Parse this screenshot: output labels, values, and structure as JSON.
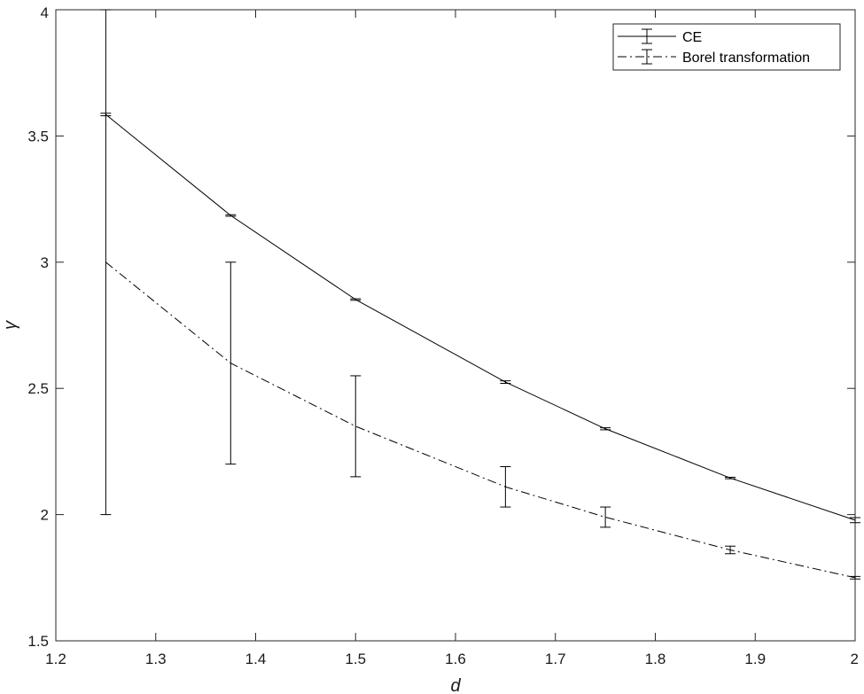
{
  "chart_data": {
    "type": "line",
    "title": "",
    "xlabel": "d",
    "ylabel": "γ",
    "xlim": [
      1.2,
      2.0
    ],
    "ylim": [
      1.5,
      4.0
    ],
    "xticks": [
      "1.2",
      "1.3",
      "1.4",
      "1.5",
      "1.6",
      "1.7",
      "1.8",
      "1.9",
      "2"
    ],
    "yticks": [
      "1.5",
      "2",
      "2.5",
      "3",
      "3.5",
      "4"
    ],
    "grid": false,
    "legend_position": "top-right",
    "series": [
      {
        "name": "CE",
        "line_style": "solid",
        "x": [
          1.25,
          1.375,
          1.5,
          1.65,
          1.75,
          1.875,
          2.0
        ],
        "y": [
          3.585,
          3.185,
          2.852,
          2.525,
          2.34,
          2.145,
          1.978
        ],
        "err": [
          0.005,
          0.003,
          0.003,
          0.005,
          0.004,
          0.003,
          0.01
        ]
      },
      {
        "name": "Borel transformation",
        "line_style": "dash-dot",
        "x": [
          1.25,
          1.375,
          1.5,
          1.65,
          1.75,
          1.875,
          2.0
        ],
        "y": [
          3.0,
          2.6,
          2.35,
          2.11,
          1.99,
          1.86,
          1.75
        ],
        "err": [
          1.0,
          0.4,
          0.2,
          0.08,
          0.04,
          0.015,
          0.005
        ]
      }
    ]
  }
}
